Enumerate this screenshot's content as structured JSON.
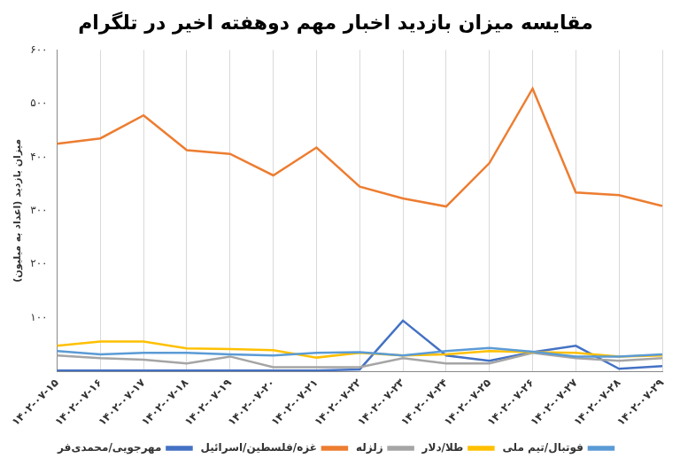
{
  "chart_data": {
    "type": "line",
    "title": "مقایسه میزان بازدید اخبار مهم دوهفته اخیر در تلگرام",
    "y_label": "میزان بازدید (اعداد به میلیون)",
    "categories": [
      "۱۴۰۲-۰۷-۱۵",
      "۱۴۰۲-۰۷-۱۶",
      "۱۴۰۲-۰۷-۱۷",
      "۱۴۰۲-۰۷-۱۸",
      "۱۴۰۲-۰۷-۱۹",
      "۱۴۰۲-۰۷-۲۰",
      "۱۴۰۲-۰۷-۲۱",
      "۱۴۰۲-۰۷-۲۲",
      "۱۴۰۲-۰۷-۲۳",
      "۱۴۰۲-۰۷-۲۴",
      "۱۴۰۲-۰۷-۲۵",
      "۱۴۰۲-۰۷-۲۶",
      "۱۴۰۲-۰۷-۲۷",
      "۱۴۰۲-۰۷-۲۸",
      "۱۴۰۲-۰۷-۲۹"
    ],
    "series": [
      {
        "name": "فوتبال/تیم ملی",
        "color": "#5b9bd5",
        "values": [
          38,
          32,
          35,
          35,
          32,
          30,
          35,
          36,
          30,
          38,
          44,
          37,
          28,
          28,
          32
        ]
      },
      {
        "name": "طلا/دلار",
        "color": "#ffc000",
        "values": [
          48,
          56,
          56,
          43,
          42,
          40,
          26,
          35,
          30,
          32,
          38,
          36,
          35,
          28,
          30
        ]
      },
      {
        "name": "زلزله",
        "color": "#a5a5a5",
        "values": [
          30,
          25,
          22,
          15,
          28,
          8,
          8,
          8,
          25,
          15,
          15,
          35,
          25,
          20,
          25
        ]
      },
      {
        "name": "غزه/فلسطین/اسرائیل",
        "color": "#ed7d31",
        "values": [
          425,
          435,
          478,
          413,
          406,
          366,
          418,
          345,
          323,
          308,
          389,
          528,
          334,
          329,
          309
        ]
      },
      {
        "name": "مهرجویی/محمدی‌فر",
        "color": "#4472c4",
        "values": [
          2,
          2,
          2,
          2,
          2,
          2,
          2,
          4,
          95,
          30,
          20,
          36,
          48,
          5,
          10
        ]
      }
    ],
    "ylim": [
      0,
      600
    ],
    "yticks": [
      {
        "value": 100,
        "label": "۱۰۰"
      },
      {
        "value": 200,
        "label": "۲۰۰"
      },
      {
        "value": 300,
        "label": "۳۰۰"
      },
      {
        "value": 400,
        "label": "۴۰۰"
      },
      {
        "value": 500,
        "label": "۵۰۰"
      },
      {
        "value": 600,
        "label": "۶۰۰"
      }
    ],
    "grid": true,
    "legend": "bottom",
    "marker": "none"
  }
}
